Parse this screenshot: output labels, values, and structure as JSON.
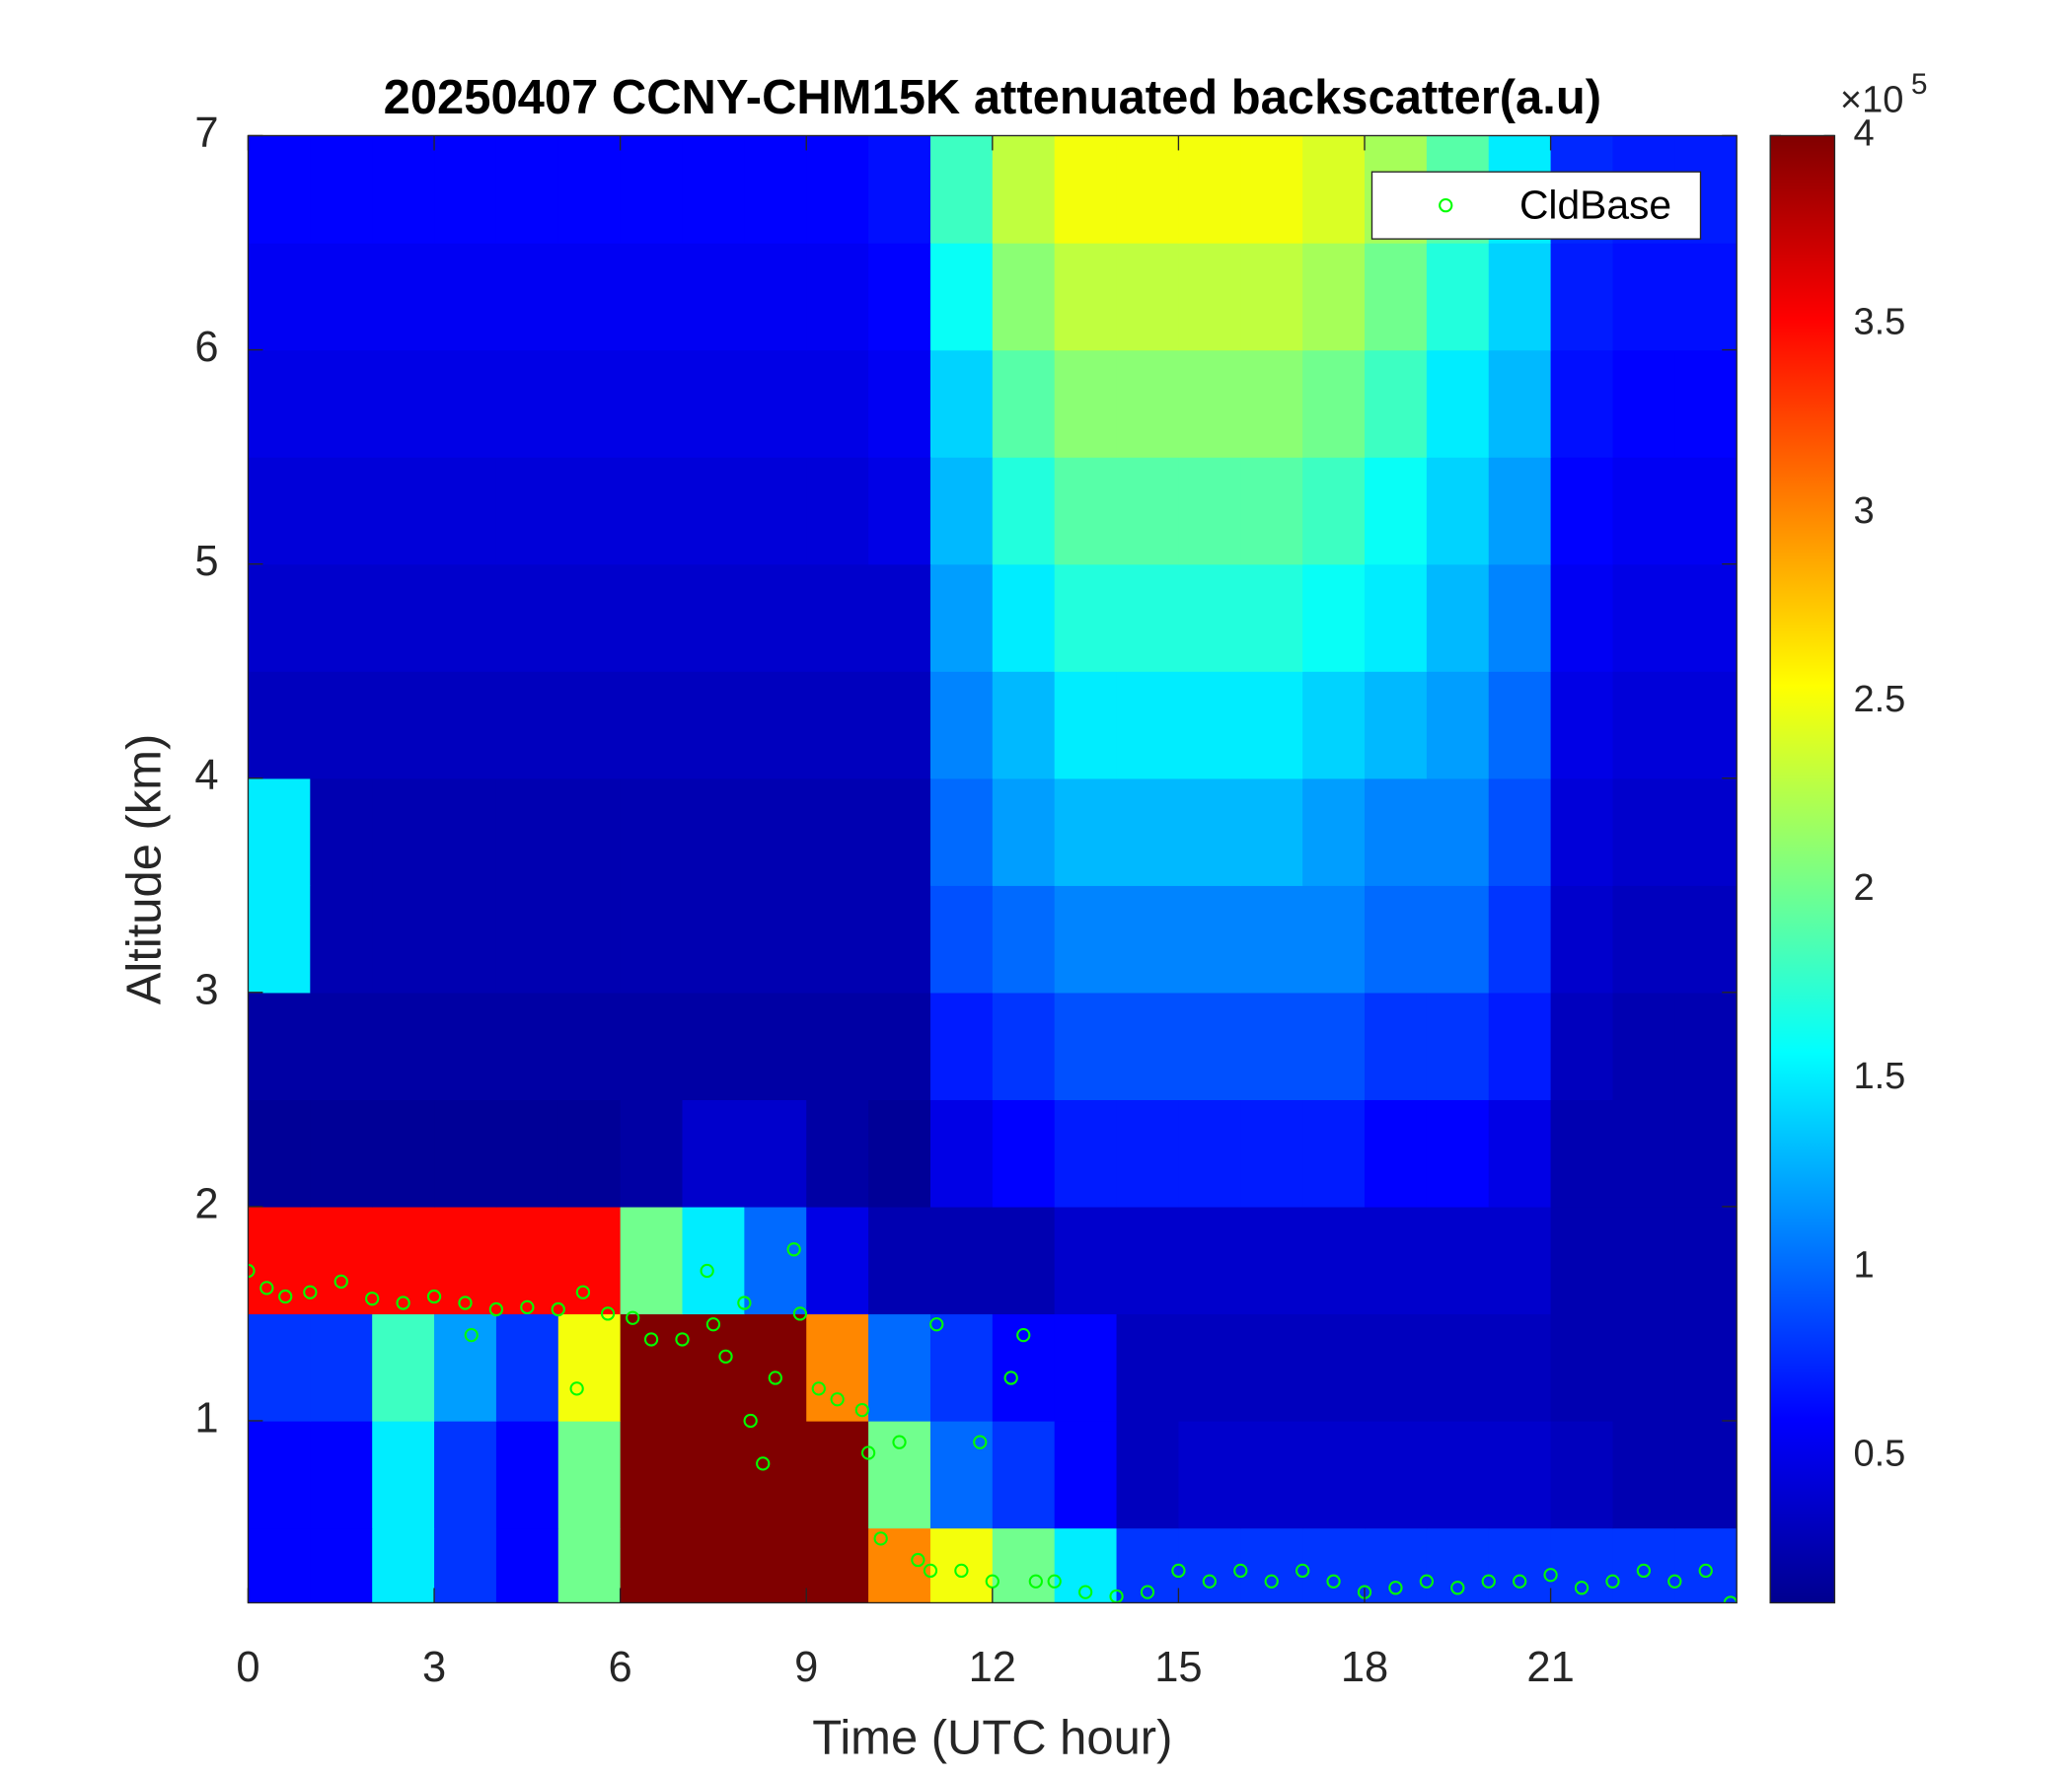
{
  "chart_data": {
    "type": "heatmap_scatter",
    "title": "20250407 CCNY-CHM15K attenuated backscatter(a.u)",
    "xlabel": "Time (UTC hour)",
    "ylabel": "Altitude (km)",
    "xlim": [
      0,
      24
    ],
    "xticks": [
      0,
      3,
      6,
      9,
      12,
      15,
      18,
      21
    ],
    "ylim": [
      0.15,
      7
    ],
    "yticks": [
      1,
      2,
      3,
      4,
      5,
      6,
      7
    ],
    "clim": [
      0.11,
      4
    ],
    "cticks": [
      0.5,
      1,
      1.5,
      2,
      2.5,
      3,
      3.5,
      4
    ],
    "colorbar_multiplier": {
      "base": "×10",
      "exponent": "5"
    },
    "colormap": "jet",
    "time_bins": [
      0,
      1,
      2,
      3,
      4,
      5,
      6,
      7,
      8,
      9,
      10,
      11,
      12,
      13,
      14,
      15,
      16,
      17,
      18,
      19,
      20,
      21,
      22,
      23,
      24
    ],
    "altitude_bins": [
      0.15,
      0.5,
      1,
      1.5,
      2,
      2.5,
      3,
      3.5,
      4,
      4.5,
      5,
      5.5,
      6,
      6.5,
      7
    ],
    "z": [
      [
        0.6,
        0.6,
        1.5,
        0.8,
        0.6,
        2,
        4,
        4,
        4,
        4,
        3,
        2.5,
        2,
        1.5,
        0.8,
        0.8,
        0.8,
        0.8,
        0.8,
        0.8,
        0.8,
        0.8,
        0.8,
        0.8
      ],
      [
        0.6,
        0.6,
        1.5,
        0.8,
        0.6,
        2,
        4,
        4,
        4,
        4,
        2,
        1,
        0.8,
        0.6,
        0.35,
        0.4,
        0.4,
        0.4,
        0.4,
        0.4,
        0.4,
        0.35,
        0.3,
        0.3
      ],
      [
        0.8,
        0.8,
        1.8,
        1.2,
        0.8,
        2.5,
        4,
        4,
        4,
        3,
        1,
        0.8,
        0.6,
        0.6,
        0.35,
        0.35,
        0.35,
        0.35,
        0.35,
        0.35,
        0.35,
        0.3,
        0.3,
        0.3
      ],
      [
        3.5,
        3.5,
        3.5,
        3.5,
        3.5,
        3.5,
        2,
        1.5,
        1,
        0.5,
        0.3,
        0.3,
        0.3,
        0.4,
        0.4,
        0.4,
        0.4,
        0.4,
        0.4,
        0.4,
        0.4,
        0.3,
        0.3,
        0.3
      ],
      [
        0.2,
        0.2,
        0.2,
        0.2,
        0.2,
        0.2,
        0.25,
        0.4,
        0.4,
        0.25,
        0.2,
        0.5,
        0.6,
        0.7,
        0.7,
        0.7,
        0.7,
        0.7,
        0.6,
        0.6,
        0.5,
        0.3,
        0.3,
        0.3
      ],
      [
        0.25,
        0.25,
        0.25,
        0.25,
        0.25,
        0.25,
        0.25,
        0.25,
        0.25,
        0.25,
        0.25,
        0.7,
        0.8,
        0.9,
        0.9,
        0.9,
        0.9,
        0.9,
        0.8,
        0.8,
        0.7,
        0.35,
        0.3,
        0.3
      ],
      [
        1.5,
        0.3,
        0.3,
        0.3,
        0.3,
        0.3,
        0.3,
        0.3,
        0.3,
        0.3,
        0.3,
        0.9,
        1.0,
        1.1,
        1.1,
        1.1,
        1.1,
        1.1,
        1.0,
        1.0,
        0.8,
        0.4,
        0.35,
        0.35
      ],
      [
        1.5,
        0.3,
        0.3,
        0.3,
        0.3,
        0.3,
        0.3,
        0.3,
        0.3,
        0.3,
        0.3,
        1.0,
        1.2,
        1.3,
        1.3,
        1.3,
        1.3,
        1.2,
        1.1,
        1.1,
        0.9,
        0.45,
        0.4,
        0.4
      ],
      [
        0.35,
        0.35,
        0.35,
        0.35,
        0.35,
        0.35,
        0.35,
        0.35,
        0.35,
        0.35,
        0.35,
        1.1,
        1.3,
        1.5,
        1.5,
        1.5,
        1.5,
        1.4,
        1.3,
        1.2,
        1.0,
        0.5,
        0.45,
        0.45
      ],
      [
        0.4,
        0.4,
        0.4,
        0.4,
        0.4,
        0.4,
        0.4,
        0.4,
        0.4,
        0.4,
        0.4,
        1.2,
        1.5,
        1.7,
        1.7,
        1.7,
        1.7,
        1.6,
        1.5,
        1.3,
        1.1,
        0.55,
        0.5,
        0.5
      ],
      [
        0.45,
        0.45,
        0.45,
        0.45,
        0.45,
        0.45,
        0.45,
        0.45,
        0.45,
        0.45,
        0.5,
        1.3,
        1.7,
        1.9,
        1.9,
        1.9,
        1.9,
        1.8,
        1.6,
        1.4,
        1.2,
        0.6,
        0.55,
        0.55
      ],
      [
        0.5,
        0.5,
        0.5,
        0.5,
        0.5,
        0.5,
        0.5,
        0.5,
        0.5,
        0.5,
        0.55,
        1.4,
        1.9,
        2.1,
        2.1,
        2.1,
        2.1,
        2.0,
        1.8,
        1.5,
        1.3,
        0.65,
        0.6,
        0.6
      ],
      [
        0.55,
        0.55,
        0.55,
        0.55,
        0.55,
        0.55,
        0.55,
        0.55,
        0.55,
        0.55,
        0.6,
        1.6,
        2.1,
        2.3,
        2.3,
        2.3,
        2.3,
        2.2,
        2.0,
        1.7,
        1.4,
        0.7,
        0.65,
        0.65
      ],
      [
        0.6,
        0.6,
        0.6,
        0.6,
        0.6,
        0.6,
        0.6,
        0.6,
        0.6,
        0.6,
        0.65,
        1.8,
        2.3,
        2.5,
        2.5,
        2.5,
        2.5,
        2.4,
        2.2,
        1.9,
        1.5,
        0.75,
        0.7,
        0.7
      ]
    ],
    "series": [
      {
        "name": "CldBase",
        "color": "#00ff00",
        "x": [
          0,
          0.3,
          0.6,
          1,
          1.5,
          2,
          2.5,
          3,
          3.5,
          3.6,
          4,
          4.5,
          5,
          5.4,
          5.3,
          5.8,
          6.2,
          6.5,
          7,
          7.4,
          7.5,
          7.7,
          8,
          8.1,
          8.3,
          8.5,
          8.8,
          8.9,
          9.2,
          9.5,
          9.9,
          10,
          10.2,
          10.5,
          10.8,
          11,
          11.1,
          11.5,
          11.8,
          12,
          12.3,
          12.5,
          12.7,
          13,
          13.5,
          14,
          14.5,
          15,
          15.5,
          16,
          16.5,
          17,
          17.5,
          18,
          18.5,
          19,
          19.5,
          20,
          20.5,
          21,
          21.5,
          22,
          22.5,
          23,
          23.5,
          23.9
        ],
        "values": [
          1.7,
          1.62,
          1.58,
          1.6,
          1.65,
          1.57,
          1.55,
          1.58,
          1.55,
          1.4,
          1.52,
          1.53,
          1.52,
          1.6,
          1.15,
          1.5,
          1.48,
          1.38,
          1.38,
          1.7,
          1.45,
          1.3,
          1.55,
          1.0,
          0.8,
          1.2,
          1.8,
          1.5,
          1.15,
          1.1,
          1.05,
          0.85,
          0.45,
          0.9,
          0.35,
          0.3,
          1.45,
          0.3,
          0.9,
          0.25,
          1.2,
          1.4,
          0.25,
          0.25,
          0.2,
          0.18,
          0.2,
          0.3,
          0.25,
          0.3,
          0.25,
          0.3,
          0.25,
          0.2,
          0.22,
          0.25,
          0.22,
          0.25,
          0.25,
          0.28,
          0.22,
          0.25,
          0.3,
          0.25,
          0.3,
          0.15
        ]
      }
    ],
    "legend": "upper right"
  }
}
